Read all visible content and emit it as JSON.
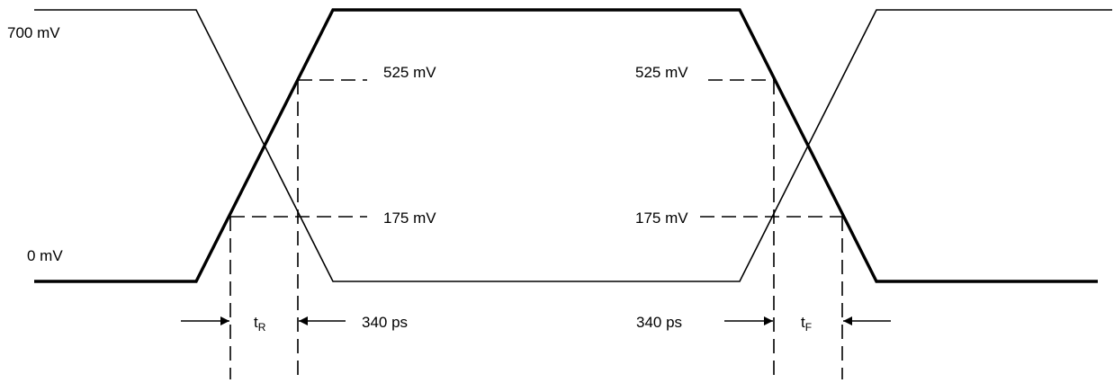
{
  "labels": {
    "v_high": "700 mV",
    "v_low": "0 mV",
    "v_525_left": "525 mV",
    "v_175_left": "175 mV",
    "v_525_right": "525 mV",
    "v_175_right": "175 mV",
    "ps_left": "340 ps",
    "ps_right": "340 ps",
    "t_rise": "t",
    "t_rise_sub": "R",
    "t_fall": "t",
    "t_fall_sub": "F"
  }
}
